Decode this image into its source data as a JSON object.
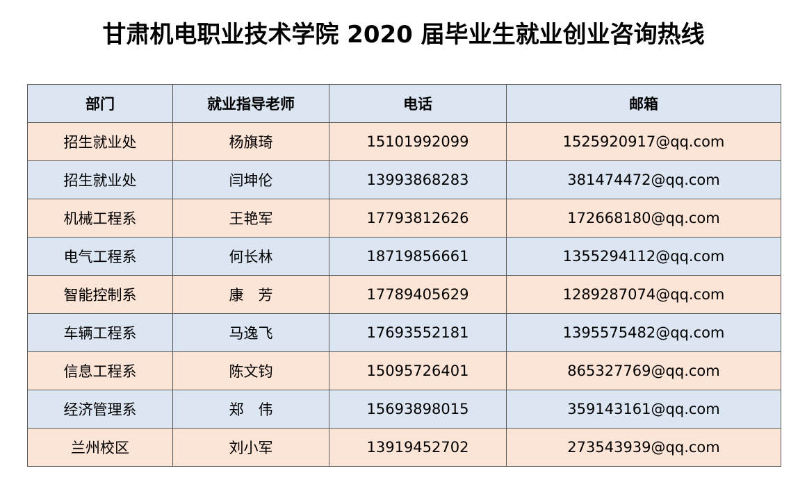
{
  "title": "甘肃机电职业技术学院 2020 届毕业生就业创业咨询热线",
  "table": {
    "headers": [
      "部门",
      "就业指导老师",
      "电话",
      "邮箱"
    ],
    "rows": [
      {
        "dept": "招生就业处",
        "teacher": "杨旗琦",
        "phone": "15101992099",
        "email": "1525920917@qq.com"
      },
      {
        "dept": "招生就业处",
        "teacher": "闫坤伦",
        "phone": "13993868283",
        "email": "381474472@qq.com"
      },
      {
        "dept": "机械工程系",
        "teacher": "王艳军",
        "phone": "17793812626",
        "email": "172668180@qq.com"
      },
      {
        "dept": "电气工程系",
        "teacher": "何长林",
        "phone": "18719856661",
        "email": "1355294112@qq.com"
      },
      {
        "dept": "智能控制系",
        "teacher": "康　芳",
        "phone": "17789405629",
        "email": "1289287074@qq.com"
      },
      {
        "dept": "车辆工程系",
        "teacher": "马逸飞",
        "phone": "17693552181",
        "email": "1395575482@qq.com"
      },
      {
        "dept": "信息工程系",
        "teacher": "陈文钧",
        "phone": "15095726401",
        "email": "865327769@qq.com"
      },
      {
        "dept": "经济管理系",
        "teacher": "郑　伟",
        "phone": "15693898015",
        "email": "359143161@qq.com"
      },
      {
        "dept": "兰州校区",
        "teacher": "刘小军",
        "phone": "13919452702",
        "email": "273543939@qq.com"
      }
    ]
  },
  "colors": {
    "header_bg": "#dce6f2",
    "row_peach": "#fce4d6",
    "row_blue": "#dce6f2",
    "border": "#595959"
  }
}
